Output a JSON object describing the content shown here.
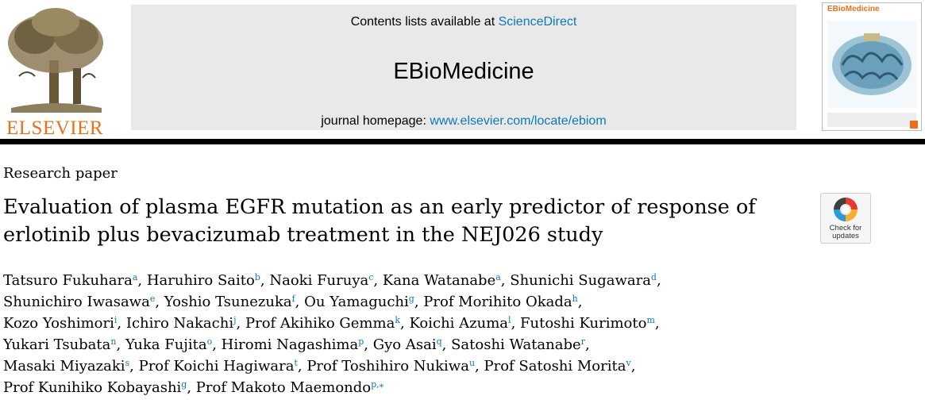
{
  "header": {
    "publisher": "ELSEVIER",
    "contents_prefix": "Contents lists available at ",
    "contents_link": "ScienceDirect",
    "journal": "EBioMedicine",
    "homepage_prefix": "journal homepage: ",
    "homepage_link": "www.elsevier.com/locate/ebiom",
    "cover_title": "EBioMedicine"
  },
  "article": {
    "type": "Research paper",
    "title": "Evaluation of plasma EGFR mutation as an early predictor of response of erlotinib plus bevacizumab treatment in the NEJ026 study"
  },
  "crossmark": {
    "label_line1": "Check for",
    "label_line2": "updates"
  },
  "authors": [
    {
      "name": "Tatsuro Fukuhara",
      "aff": "a"
    },
    {
      "name": "Haruhiro Saito",
      "aff": "b"
    },
    {
      "name": "Naoki Furuya",
      "aff": "c"
    },
    {
      "name": "Kana Watanabe",
      "aff": "a"
    },
    {
      "name": "Shunichi Sugawara",
      "aff": "d"
    },
    {
      "name": "Shunichiro Iwasawa",
      "aff": "e"
    },
    {
      "name": "Yoshio Tsunezuka",
      "aff": "f"
    },
    {
      "name": "Ou Yamaguchi",
      "aff": "g"
    },
    {
      "name": "Prof Morihito Okada",
      "aff": "h"
    },
    {
      "name": "Kozo Yoshimori",
      "aff": "i"
    },
    {
      "name": "Ichiro Nakachi",
      "aff": "j"
    },
    {
      "name": "Prof Akihiko Gemma",
      "aff": "k"
    },
    {
      "name": "Koichi Azuma",
      "aff": "l"
    },
    {
      "name": "Futoshi Kurimoto",
      "aff": "m"
    },
    {
      "name": "Yukari Tsubata",
      "aff": "n"
    },
    {
      "name": "Yuka Fujita",
      "aff": "o"
    },
    {
      "name": "Hiromi Nagashima",
      "aff": "p"
    },
    {
      "name": "Gyo Asai",
      "aff": "q"
    },
    {
      "name": "Satoshi Watanabe",
      "aff": "r"
    },
    {
      "name": "Masaki Miyazaki",
      "aff": "s"
    },
    {
      "name": "Prof Koichi Hagiwara",
      "aff": "t"
    },
    {
      "name": "Prof Toshihiro Nukiwa",
      "aff": "u"
    },
    {
      "name": "Prof Satoshi Morita",
      "aff": "v"
    },
    {
      "name": "Prof Kunihiko Kobayashi",
      "aff": "g"
    },
    {
      "name": "Prof Makoto Maemondo",
      "aff": "p,⁎"
    }
  ],
  "colors": {
    "link": "#0b79b8",
    "publisher": "#e9711c",
    "panel": "#e9e9e9"
  }
}
